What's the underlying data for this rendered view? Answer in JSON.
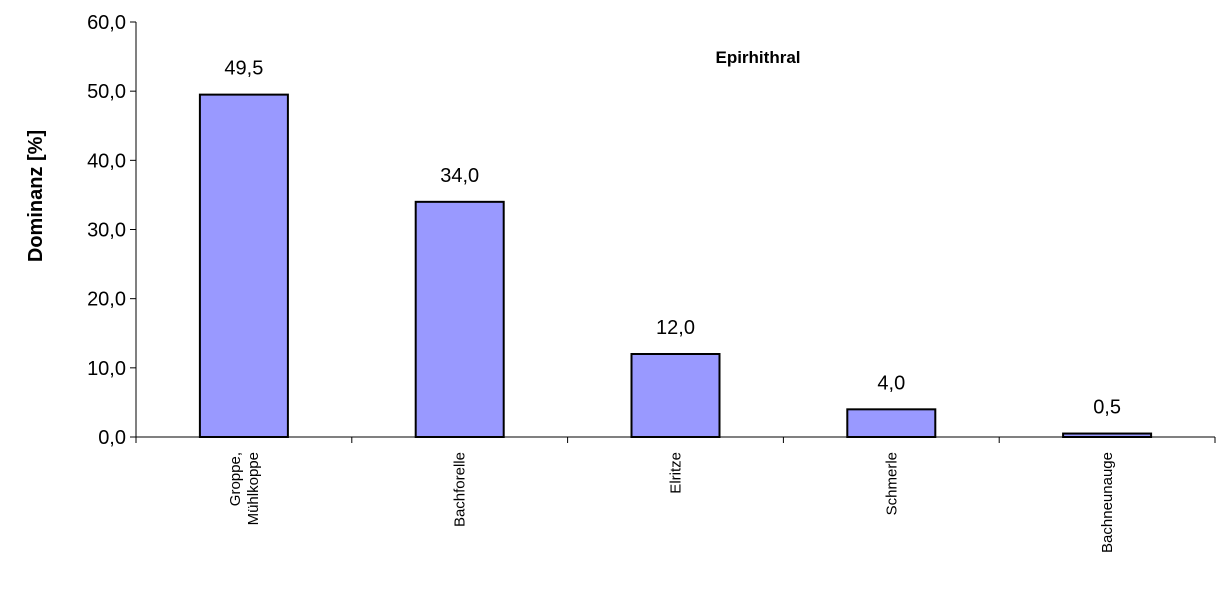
{
  "chart_data": {
    "type": "bar",
    "title": "Epirhithral",
    "xlabel": "",
    "ylabel": "Dominanz [%]",
    "ylim": [
      0,
      60
    ],
    "y_ticks": [
      "0,0",
      "10,0",
      "20,0",
      "30,0",
      "40,0",
      "50,0",
      "60,0"
    ],
    "categories": [
      [
        "Groppe,",
        "Mühlkoppe"
      ],
      [
        "Bachforelle"
      ],
      [
        "Elritze"
      ],
      [
        "Schmerle"
      ],
      [
        "Bachneunauge"
      ]
    ],
    "values": [
      49.5,
      34.0,
      12.0,
      4.0,
      0.5
    ],
    "value_labels": [
      "49,5",
      "34,0",
      "12,0",
      "4,0",
      "0,5"
    ],
    "grid": false,
    "bar_color": "#9999ff",
    "bar_border_color": "#000000"
  }
}
